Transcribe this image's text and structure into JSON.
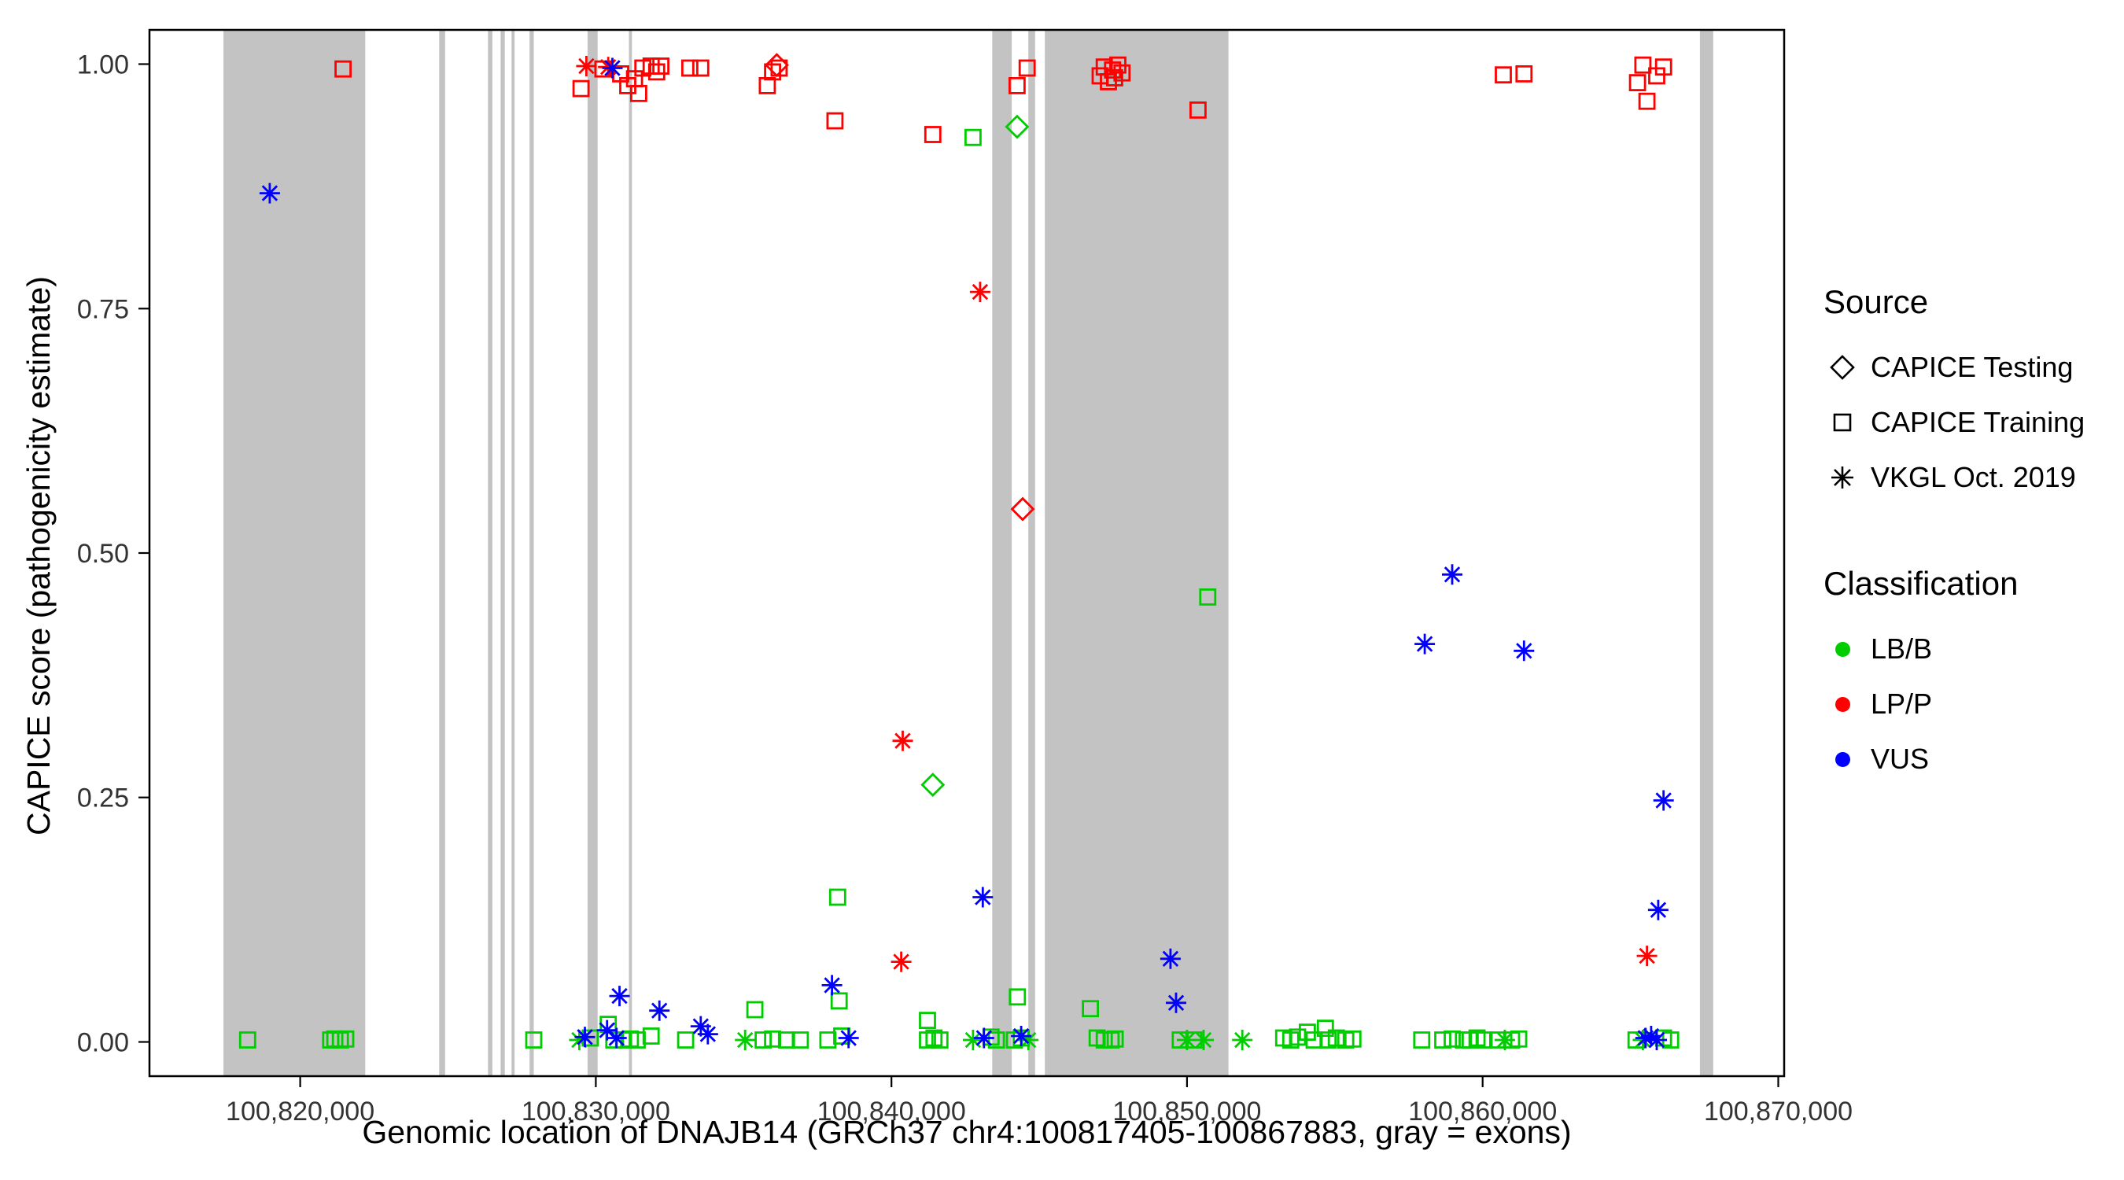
{
  "chart_data": {
    "type": "scatter",
    "xlabel": "Genomic location of DNAJB14 (GRCh37 chr4:100817405-100867883, gray = exons)",
    "ylabel": "CAPICE score (pathogenicity estimate)",
    "x_domain": [
      100814900,
      100870200
    ],
    "y_domain": [
      -0.035,
      1.035
    ],
    "x_ticks": [
      {
        "value": 100820000,
        "label": "100,820,000"
      },
      {
        "value": 100830000,
        "label": "100,830,000"
      },
      {
        "value": 100840000,
        "label": "100,840,000"
      },
      {
        "value": 100850000,
        "label": "100,850,000"
      },
      {
        "value": 100860000,
        "label": "100,860,000"
      },
      {
        "value": 100870000,
        "label": "100,870,000"
      }
    ],
    "y_ticks": [
      {
        "value": 0.0,
        "label": "0.00"
      },
      {
        "value": 0.25,
        "label": "0.25"
      },
      {
        "value": 0.5,
        "label": "0.50"
      },
      {
        "value": 0.75,
        "label": "0.75"
      },
      {
        "value": 1.0,
        "label": "1.00"
      }
    ],
    "colors": {
      "LB/B": "#00CD00",
      "LP/P": "#FF0000",
      "VUS": "#0000FF",
      "exon": "#C3C3C3",
      "axis": "#000000",
      "tick_text": "#333333"
    },
    "exons": [
      [
        100817405,
        100822200
      ],
      [
        100824700,
        100824900
      ],
      [
        100826350,
        100826500
      ],
      [
        100826780,
        100826920
      ],
      [
        100827150,
        100827250
      ],
      [
        100827760,
        100827900
      ],
      [
        100829720,
        100830060
      ],
      [
        100831120,
        100831220
      ],
      [
        100843410,
        100844070
      ],
      [
        100844630,
        100844860
      ],
      [
        100845190,
        100851400
      ],
      [
        100867350,
        100867800
      ]
    ],
    "point_format": [
      "genomic_position",
      "capice_score",
      "source_code",
      "classification_code"
    ],
    "source_codes": {
      "T": "CAPICE Testing",
      "R": "CAPICE Training",
      "V": "VKGL Oct. 2019"
    },
    "class_codes": {
      "B": "LB/B",
      "P": "LP/P",
      "U": "VUS"
    },
    "points": [
      [
        100821450,
        0.995,
        "R",
        "P"
      ],
      [
        100829500,
        0.975,
        "R",
        "P"
      ],
      [
        100829680,
        0.998,
        "V",
        "P"
      ],
      [
        100830240,
        0.995,
        "R",
        "P"
      ],
      [
        100830420,
        0.997,
        "V",
        "P"
      ],
      [
        100830840,
        0.99,
        "R",
        "P"
      ],
      [
        100831080,
        0.978,
        "R",
        "P"
      ],
      [
        100831310,
        0.985,
        "R",
        "P"
      ],
      [
        100831450,
        0.97,
        "R",
        "P"
      ],
      [
        100831590,
        0.996,
        "R",
        "P"
      ],
      [
        100831870,
        0.998,
        "R",
        "P"
      ],
      [
        100832060,
        0.992,
        "R",
        "P"
      ],
      [
        100832200,
        0.998,
        "R",
        "P"
      ],
      [
        100833180,
        0.996,
        "R",
        "P"
      ],
      [
        100833550,
        0.996,
        "R",
        "P"
      ],
      [
        100835800,
        0.978,
        "R",
        "P"
      ],
      [
        100835980,
        0.992,
        "R",
        "P"
      ],
      [
        100836120,
        0.999,
        "T",
        "P"
      ],
      [
        100836200,
        0.996,
        "R",
        "P"
      ],
      [
        100838090,
        0.942,
        "R",
        "P"
      ],
      [
        100840330,
        0.082,
        "V",
        "P"
      ],
      [
        100840380,
        0.308,
        "V",
        "P"
      ],
      [
        100841400,
        0.928,
        "R",
        "P"
      ],
      [
        100843000,
        0.767,
        "V",
        "P"
      ],
      [
        100844250,
        0.978,
        "R",
        "P"
      ],
      [
        100844440,
        0.545,
        "T",
        "P"
      ],
      [
        100844590,
        0.996,
        "R",
        "P"
      ],
      [
        100847060,
        0.988,
        "R",
        "P"
      ],
      [
        100847200,
        0.997,
        "R",
        "P"
      ],
      [
        100847340,
        0.982,
        "R",
        "P"
      ],
      [
        100847480,
        0.994,
        "R",
        "P"
      ],
      [
        100847550,
        0.986,
        "R",
        "P"
      ],
      [
        100847660,
        0.999,
        "R",
        "P"
      ],
      [
        100847800,
        0.991,
        "R",
        "P"
      ],
      [
        100850370,
        0.953,
        "R",
        "P"
      ],
      [
        100860700,
        0.989,
        "R",
        "P"
      ],
      [
        100861400,
        0.99,
        "R",
        "P"
      ],
      [
        100865240,
        0.981,
        "R",
        "P"
      ],
      [
        100865420,
        0.999,
        "R",
        "P"
      ],
      [
        100865560,
        0.962,
        "R",
        "P"
      ],
      [
        100865560,
        0.088,
        "V",
        "P"
      ],
      [
        100865890,
        0.988,
        "R",
        "P"
      ],
      [
        100866120,
        0.997,
        "R",
        "P"
      ],
      [
        100842760,
        0.925,
        "R",
        "B"
      ],
      [
        100844250,
        0.936,
        "T",
        "B"
      ],
      [
        100841400,
        0.263,
        "T",
        "B"
      ],
      [
        100850700,
        0.455,
        "R",
        "B"
      ],
      [
        100838180,
        0.148,
        "R",
        "B"
      ],
      [
        100838230,
        0.042,
        "R",
        "B"
      ],
      [
        100844260,
        0.046,
        "R",
        "B"
      ],
      [
        100846730,
        0.034,
        "R",
        "B"
      ],
      [
        100835380,
        0.033,
        "R",
        "B"
      ],
      [
        100841220,
        0.022,
        "R",
        "B"
      ],
      [
        100830420,
        0.018,
        "R",
        "B"
      ],
      [
        100854680,
        0.014,
        "R",
        "B"
      ],
      [
        100854070,
        0.01,
        "R",
        "B"
      ],
      [
        100818220,
        0.002,
        "R",
        "B"
      ],
      [
        100821030,
        0.002,
        "R",
        "B"
      ],
      [
        100821170,
        0.003,
        "R",
        "B"
      ],
      [
        100821360,
        0.002,
        "R",
        "B"
      ],
      [
        100821540,
        0.003,
        "R",
        "B"
      ],
      [
        100827900,
        0.002,
        "R",
        "B"
      ],
      [
        100829810,
        0.004,
        "R",
        "B"
      ],
      [
        100830610,
        0.002,
        "R",
        "B"
      ],
      [
        100830940,
        0.002,
        "R",
        "B"
      ],
      [
        100831170,
        0.003,
        "R",
        "B"
      ],
      [
        100831400,
        0.002,
        "R",
        "B"
      ],
      [
        100831870,
        0.006,
        "R",
        "B"
      ],
      [
        100833040,
        0.002,
        "R",
        "B"
      ],
      [
        100835660,
        0.002,
        "R",
        "B"
      ],
      [
        100835980,
        0.003,
        "R",
        "B"
      ],
      [
        100836450,
        0.002,
        "R",
        "B"
      ],
      [
        100836920,
        0.002,
        "R",
        "B"
      ],
      [
        100837850,
        0.002,
        "R",
        "B"
      ],
      [
        100838320,
        0.006,
        "R",
        "B"
      ],
      [
        100841220,
        0.002,
        "R",
        "B"
      ],
      [
        100841440,
        0.004,
        "R",
        "B"
      ],
      [
        100841640,
        0.002,
        "R",
        "B"
      ],
      [
        100843370,
        0.005,
        "R",
        "B"
      ],
      [
        100843550,
        0.002,
        "R",
        "B"
      ],
      [
        100844160,
        0.002,
        "R",
        "B"
      ],
      [
        100844390,
        0.004,
        "R",
        "B"
      ],
      [
        100846960,
        0.004,
        "R",
        "B"
      ],
      [
        100847200,
        0.002,
        "R",
        "B"
      ],
      [
        100847430,
        0.002,
        "R",
        "B"
      ],
      [
        100847570,
        0.003,
        "R",
        "B"
      ],
      [
        100849770,
        0.002,
        "R",
        "B"
      ],
      [
        100850230,
        0.002,
        "R",
        "B"
      ],
      [
        100853270,
        0.004,
        "R",
        "B"
      ],
      [
        100853510,
        0.002,
        "R",
        "B"
      ],
      [
        100853740,
        0.005,
        "R",
        "B"
      ],
      [
        100854300,
        0.002,
        "R",
        "B"
      ],
      [
        100854770,
        0.002,
        "R",
        "B"
      ],
      [
        100855050,
        0.004,
        "R",
        "B"
      ],
      [
        100855370,
        0.002,
        "R",
        "B"
      ],
      [
        100855610,
        0.003,
        "R",
        "B"
      ],
      [
        100857940,
        0.002,
        "R",
        "B"
      ],
      [
        100858650,
        0.002,
        "R",
        "B"
      ],
      [
        100858970,
        0.003,
        "R",
        "B"
      ],
      [
        100859350,
        0.002,
        "R",
        "B"
      ],
      [
        100859580,
        0.002,
        "R",
        "B"
      ],
      [
        100859810,
        0.004,
        "R",
        "B"
      ],
      [
        100860050,
        0.002,
        "R",
        "B"
      ],
      [
        100860510,
        0.002,
        "R",
        "B"
      ],
      [
        100860980,
        0.002,
        "R",
        "B"
      ],
      [
        100861220,
        0.003,
        "R",
        "B"
      ],
      [
        100865190,
        0.002,
        "R",
        "B"
      ],
      [
        100866120,
        0.004,
        "R",
        "B"
      ],
      [
        100866360,
        0.002,
        "R",
        "B"
      ],
      [
        100829440,
        0.002,
        "V",
        "B"
      ],
      [
        100835050,
        0.002,
        "V",
        "B"
      ],
      [
        100842760,
        0.002,
        "V",
        "B"
      ],
      [
        100844630,
        0.002,
        "V",
        "B"
      ],
      [
        100850000,
        0.002,
        "V",
        "B"
      ],
      [
        100850560,
        0.002,
        "V",
        "B"
      ],
      [
        100851870,
        0.002,
        "V",
        "B"
      ],
      [
        100860750,
        0.002,
        "V",
        "B"
      ],
      [
        100865420,
        0.002,
        "V",
        "B"
      ],
      [
        100818970,
        0.868,
        "V",
        "U"
      ],
      [
        100830560,
        0.996,
        "V",
        "U"
      ],
      [
        100858970,
        0.478,
        "V",
        "U"
      ],
      [
        100858040,
        0.407,
        "V",
        "U"
      ],
      [
        100861400,
        0.4,
        "V",
        "U"
      ],
      [
        100866120,
        0.247,
        "V",
        "U"
      ],
      [
        100843090,
        0.148,
        "V",
        "U"
      ],
      [
        100865940,
        0.135,
        "V",
        "U"
      ],
      [
        100849440,
        0.085,
        "V",
        "U"
      ],
      [
        100849630,
        0.04,
        "V",
        "U"
      ],
      [
        100830800,
        0.047,
        "V",
        "U"
      ],
      [
        100832150,
        0.032,
        "V",
        "U"
      ],
      [
        100837990,
        0.058,
        "V",
        "U"
      ],
      [
        100833550,
        0.016,
        "V",
        "U"
      ],
      [
        100830380,
        0.012,
        "V",
        "U"
      ],
      [
        100829630,
        0.005,
        "V",
        "U"
      ],
      [
        100833790,
        0.008,
        "V",
        "U"
      ],
      [
        100838550,
        0.004,
        "V",
        "U"
      ],
      [
        100843130,
        0.004,
        "V",
        "U"
      ],
      [
        100844390,
        0.006,
        "V",
        "U"
      ],
      [
        100865510,
        0.004,
        "V",
        "U"
      ],
      [
        100865700,
        0.006,
        "V",
        "U"
      ],
      [
        100865890,
        0.002,
        "V",
        "U"
      ],
      [
        100830700,
        0.004,
        "V",
        "U"
      ]
    ]
  },
  "legend": {
    "source": {
      "title": "Source",
      "items": [
        {
          "shape": "diamond",
          "label": "CAPICE Testing"
        },
        {
          "shape": "square",
          "label": "CAPICE Training"
        },
        {
          "shape": "asterisk",
          "label": "VKGL Oct. 2019"
        }
      ]
    },
    "classification": {
      "title": "Classification",
      "items": [
        {
          "color": "#00CD00",
          "label": "LB/B"
        },
        {
          "color": "#FF0000",
          "label": "LP/P"
        },
        {
          "color": "#0000FF",
          "label": "VUS"
        }
      ]
    }
  }
}
